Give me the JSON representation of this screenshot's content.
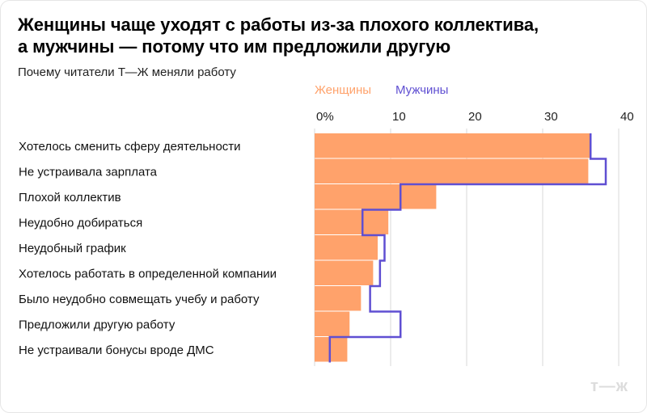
{
  "header": {
    "title_line1": "Женщины чаще уходят с работы из-за плохого коллектива,",
    "title_line2": "а мужчины — потому что им предложили другую",
    "subtitle": "Почему читатели Т—Ж меняли работу"
  },
  "logo_text": "т—ж",
  "colors": {
    "women": "#ffa26b",
    "men": "#5f4fd2",
    "grid": "#d9d9d9"
  },
  "chart_data": {
    "type": "bar",
    "orientation": "horizontal",
    "title": "Женщины чаще уходят с работы из-за плохого коллектива, а мужчины — потому что им предложили другую",
    "subtitle": "Почему читатели Т—Ж меняли работу",
    "xlim": [
      0,
      40
    ],
    "xticks": [
      0,
      10,
      20,
      30,
      40
    ],
    "xtick_labels": [
      "0%",
      "10",
      "20",
      "30",
      "40"
    ],
    "grid": true,
    "legend_placement": "top",
    "categories": [
      "Хотелось сменить сферу деятельности",
      "Не устраивала зарплата",
      "Плохой коллектив",
      "Неудобно добираться",
      "Неудобный график",
      "Хотелось работать в определенной компании",
      "Было неудобно совмещать учебу и работу",
      "Предложили другую работу",
      "Не устраивали бонусы вроде ДМС"
    ],
    "series": [
      {
        "name": "Женщины",
        "style": "filled bars",
        "values": [
          36.2,
          36.0,
          16.0,
          9.7,
          8.3,
          7.7,
          6.1,
          4.6,
          4.3
        ]
      },
      {
        "name": "Мужчины",
        "style": "step outline",
        "values": [
          36.3,
          38.3,
          11.3,
          6.3,
          9.2,
          8.6,
          7.3,
          11.3,
          2.0
        ]
      }
    ]
  }
}
